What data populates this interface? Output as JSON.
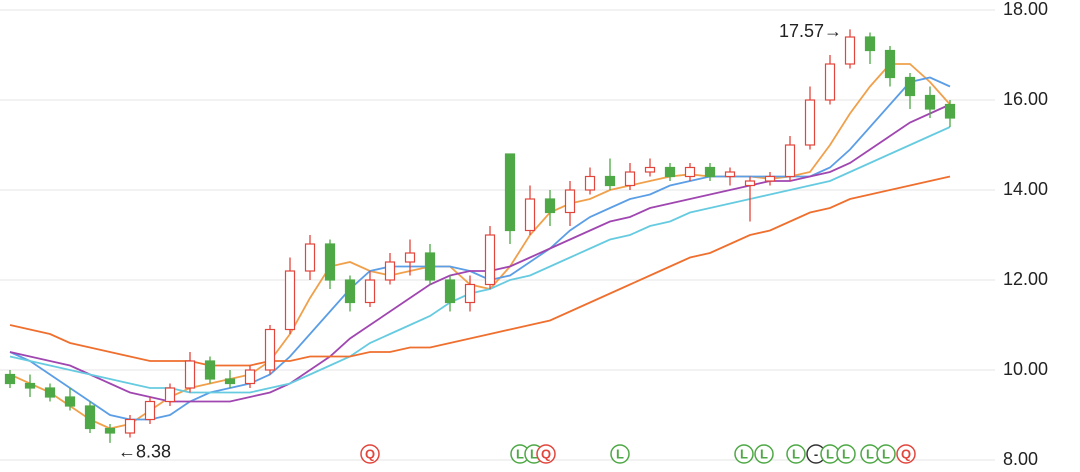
{
  "chart_data": {
    "type": "candlestick",
    "ylim": [
      8,
      18
    ],
    "yticks": [
      {
        "value": 8,
        "label": "8.00"
      },
      {
        "value": 10,
        "label": "10.00"
      },
      {
        "value": 12,
        "label": "12.00"
      },
      {
        "value": 14,
        "label": "14.00"
      },
      {
        "value": 16,
        "label": "16.00"
      },
      {
        "value": 18,
        "label": "18.00"
      }
    ],
    "grid": true,
    "up_color": "#e2453c",
    "down_color": "#4ea845",
    "open": [
      9.9,
      9.7,
      9.6,
      9.4,
      9.2,
      8.7,
      8.6,
      8.9,
      9.3,
      9.6,
      10.2,
      9.8,
      9.7,
      10.0,
      10.9,
      12.2,
      12.8,
      12.0,
      11.5,
      12.0,
      12.4,
      12.6,
      12.0,
      11.5,
      11.9,
      14.8,
      13.1,
      13.8,
      13.5,
      14.0,
      14.3,
      14.1,
      14.4,
      14.5,
      14.3,
      14.5,
      14.3,
      14.1,
      14.2,
      14.3,
      15.0,
      16.0,
      16.8,
      17.4,
      17.1,
      16.5,
      16.1,
      15.9
    ],
    "high": [
      10.0,
      9.9,
      9.7,
      9.6,
      9.3,
      8.8,
      9.0,
      9.4,
      9.7,
      10.4,
      10.3,
      10.0,
      10.1,
      11.0,
      12.5,
      13.0,
      12.9,
      12.1,
      12.2,
      12.6,
      12.9,
      12.8,
      12.1,
      12.1,
      13.2,
      14.8,
      14.1,
      14.0,
      14.2,
      14.5,
      14.7,
      14.6,
      14.7,
      14.6,
      14.6,
      14.6,
      14.5,
      14.3,
      14.4,
      15.2,
      16.3,
      17.0,
      17.57,
      17.5,
      17.2,
      16.6,
      16.3,
      16.0
    ],
    "low": [
      9.6,
      9.4,
      9.3,
      9.1,
      8.6,
      8.38,
      8.5,
      8.8,
      9.2,
      9.5,
      9.7,
      9.6,
      9.6,
      9.9,
      10.8,
      12.0,
      11.8,
      11.3,
      11.4,
      11.9,
      12.1,
      11.9,
      11.3,
      11.3,
      11.8,
      12.8,
      13.0,
      13.2,
      13.2,
      13.9,
      14.0,
      14.0,
      14.3,
      14.2,
      14.2,
      14.2,
      14.1,
      13.3,
      14.1,
      14.2,
      14.9,
      15.9,
      16.7,
      16.8,
      16.3,
      15.8,
      15.6,
      15.4
    ],
    "close": [
      9.7,
      9.6,
      9.4,
      9.2,
      8.7,
      8.6,
      8.9,
      9.3,
      9.6,
      10.2,
      9.8,
      9.7,
      10.0,
      10.9,
      12.2,
      12.8,
      12.0,
      11.5,
      12.0,
      12.4,
      12.6,
      12.0,
      11.5,
      11.9,
      13.0,
      13.1,
      13.8,
      13.5,
      14.0,
      14.3,
      14.1,
      14.4,
      14.5,
      14.3,
      14.5,
      14.3,
      14.4,
      14.2,
      14.3,
      15.0,
      16.0,
      16.8,
      17.4,
      17.1,
      16.5,
      16.1,
      15.8,
      15.6
    ],
    "series": [
      {
        "color": "#f0a04b",
        "values": [
          9.9,
          9.7,
          9.5,
          9.2,
          8.9,
          8.7,
          8.8,
          9.1,
          9.4,
          9.6,
          9.7,
          9.8,
          9.9,
          10.2,
          10.8,
          11.6,
          12.3,
          12.4,
          12.2,
          12.1,
          12.2,
          12.3,
          12.3,
          11.9,
          11.8,
          12.3,
          13.0,
          13.5,
          13.7,
          13.8,
          14.0,
          14.1,
          14.2,
          14.3,
          14.35,
          14.3,
          14.3,
          14.3,
          14.25,
          14.3,
          14.4,
          15.0,
          15.7,
          16.3,
          16.8,
          16.8,
          16.4,
          15.9
        ]
      },
      {
        "color": "#5b9ee6",
        "values": [
          10.4,
          10.2,
          9.9,
          9.6,
          9.3,
          9.0,
          8.9,
          8.9,
          9.0,
          9.3,
          9.5,
          9.6,
          9.7,
          9.9,
          10.3,
          10.8,
          11.3,
          11.8,
          12.2,
          12.3,
          12.3,
          12.3,
          12.3,
          12.2,
          12.0,
          12.1,
          12.4,
          12.7,
          13.1,
          13.4,
          13.6,
          13.8,
          13.9,
          14.1,
          14.2,
          14.3,
          14.3,
          14.3,
          14.3,
          14.3,
          14.3,
          14.5,
          14.9,
          15.4,
          15.9,
          16.4,
          16.5,
          16.3
        ]
      },
      {
        "color": "#a046b0",
        "values": [
          10.4,
          10.3,
          10.2,
          10.1,
          9.9,
          9.7,
          9.5,
          9.4,
          9.3,
          9.3,
          9.3,
          9.3,
          9.4,
          9.5,
          9.7,
          10.0,
          10.3,
          10.7,
          11.0,
          11.3,
          11.6,
          11.9,
          12.1,
          12.2,
          12.2,
          12.3,
          12.5,
          12.7,
          12.9,
          13.1,
          13.3,
          13.4,
          13.6,
          13.7,
          13.8,
          13.9,
          14.0,
          14.1,
          14.2,
          14.2,
          14.3,
          14.4,
          14.6,
          14.9,
          15.2,
          15.5,
          15.7,
          15.9
        ]
      },
      {
        "color": "#66cbe0",
        "values": [
          10.3,
          10.2,
          10.1,
          10.0,
          9.9,
          9.8,
          9.7,
          9.6,
          9.6,
          9.5,
          9.5,
          9.5,
          9.5,
          9.6,
          9.7,
          9.9,
          10.1,
          10.3,
          10.6,
          10.8,
          11.0,
          11.2,
          11.5,
          11.7,
          11.8,
          12.0,
          12.1,
          12.3,
          12.5,
          12.7,
          12.9,
          13.0,
          13.2,
          13.3,
          13.5,
          13.6,
          13.7,
          13.8,
          13.9,
          14.0,
          14.1,
          14.2,
          14.4,
          14.6,
          14.8,
          15.0,
          15.2,
          15.4
        ]
      },
      {
        "color": "#ef6f2e",
        "values": [
          11.0,
          10.9,
          10.8,
          10.6,
          10.5,
          10.4,
          10.3,
          10.2,
          10.2,
          10.2,
          10.1,
          10.1,
          10.1,
          10.2,
          10.2,
          10.3,
          10.3,
          10.3,
          10.4,
          10.4,
          10.5,
          10.5,
          10.6,
          10.7,
          10.8,
          10.9,
          11.0,
          11.1,
          11.3,
          11.5,
          11.7,
          11.9,
          12.1,
          12.3,
          12.5,
          12.6,
          12.8,
          13.0,
          13.1,
          13.3,
          13.5,
          13.6,
          13.8,
          13.9,
          14.0,
          14.1,
          14.2,
          14.3
        ]
      }
    ],
    "annotations": [
      {
        "index": 42,
        "value": 17.57,
        "label": "17.57→",
        "side": "left"
      },
      {
        "index": 5,
        "value": 8.38,
        "label": "←8.38",
        "side": "right"
      }
    ],
    "events": [
      {
        "index": 18,
        "label": "Q",
        "color": "#e2453c"
      },
      {
        "index": 25.5,
        "label": "L",
        "color": "#4ea845"
      },
      {
        "index": 26.2,
        "label": "L",
        "color": "#4ea845"
      },
      {
        "index": 26.8,
        "label": "Q",
        "color": "#e2453c"
      },
      {
        "index": 30.5,
        "label": "L",
        "color": "#4ea845"
      },
      {
        "index": 36.7,
        "label": "L",
        "color": "#4ea845"
      },
      {
        "index": 37.7,
        "label": "L",
        "color": "#4ea845"
      },
      {
        "index": 39.3,
        "label": "L",
        "color": "#4ea845"
      },
      {
        "index": 40.3,
        "label": "-",
        "color": "#333333"
      },
      {
        "index": 41.0,
        "label": "L",
        "color": "#4ea845"
      },
      {
        "index": 41.8,
        "label": "L",
        "color": "#4ea845"
      },
      {
        "index": 43.0,
        "label": "L",
        "color": "#4ea845"
      },
      {
        "index": 43.8,
        "label": "L",
        "color": "#4ea845"
      },
      {
        "index": 44.8,
        "label": "Q",
        "color": "#e2453c"
      }
    ]
  }
}
